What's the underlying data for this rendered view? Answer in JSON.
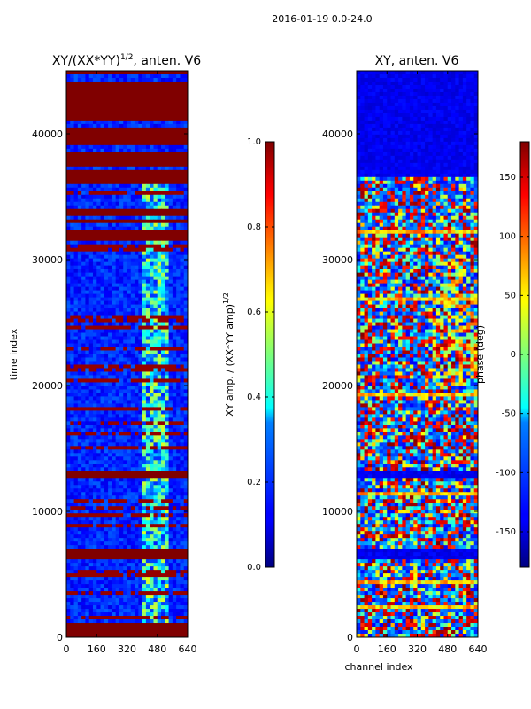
{
  "figure": {
    "suptitle": "2016-01-19 0.0-24.0",
    "xlabel_shared": "channel index"
  },
  "chart_data": [
    {
      "type": "heatmap",
      "title_main": "XY/(XX*YY)",
      "title_sup": "1/2",
      "title_tail": ", anten. V6",
      "xlabel": "",
      "ylabel": "time index",
      "x_ticks": [
        "0",
        "160",
        "320",
        "480",
        "640"
      ],
      "x_range": [
        0,
        640
      ],
      "y_ticks": [
        "0",
        "10000",
        "20000",
        "30000",
        "40000"
      ],
      "y_range": [
        0,
        45000
      ],
      "colorbar": {
        "ticks": [
          "0.0",
          "0.2",
          "0.4",
          "0.6",
          "0.8",
          "1.0"
        ],
        "range": [
          0.0,
          1.0
        ],
        "label_main": "XY amp. / (XX*YY amp)",
        "label_sup": "1/2",
        "colormap": "jet"
      },
      "saturated_bands": [
        [
          0,
          1100
        ],
        [
          6300,
          7100
        ],
        [
          12600,
          13200
        ],
        [
          31600,
          32300
        ],
        [
          32800,
          33200
        ],
        [
          33600,
          34100
        ],
        [
          36100,
          37200
        ],
        [
          37500,
          38500
        ],
        [
          39000,
          40600
        ],
        [
          41200,
          44200
        ],
        [
          44600,
          45000
        ]
      ],
      "bright_channel_range": [
        400,
        540
      ]
    },
    {
      "type": "heatmap",
      "title_main": "XY, anten. V6",
      "xlabel": "channel index",
      "ylabel": "",
      "x_ticks": [
        "0",
        "160",
        "320",
        "480",
        "640"
      ],
      "x_range": [
        0,
        640
      ],
      "y_ticks": [
        "0",
        "10000",
        "20000",
        "30000",
        "40000"
      ],
      "y_range": [
        0,
        45000
      ],
      "colorbar": {
        "ticks": [
          "-150",
          "-100",
          "-50",
          "0",
          "50",
          "100",
          "150"
        ],
        "range": [
          -180,
          180
        ],
        "label_main": "phase (deg)",
        "colormap": "jet"
      }
    }
  ]
}
